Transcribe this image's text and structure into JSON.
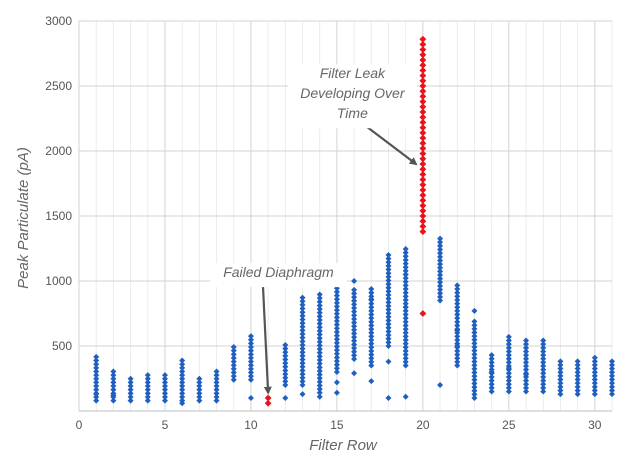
{
  "chart_data": {
    "type": "scatter",
    "title": "",
    "xlabel": "Filter Row",
    "ylabel": "Peak Particulate (pA)",
    "xlim": [
      0,
      31
    ],
    "ylim": [
      0,
      3000
    ],
    "x_ticks": [
      0,
      5,
      10,
      15,
      20,
      25,
      30
    ],
    "y_ticks": [
      500,
      1000,
      1500,
      2000,
      2500,
      3000
    ],
    "grid": true,
    "colors": {
      "normal": "#1f5fbf",
      "anomaly": "#e8141a",
      "arrow": "#555555"
    },
    "series": [
      {
        "ranges": [
          [
            1,
            80,
            440
          ],
          [
            2,
            80,
            320
          ],
          [
            3,
            80,
            270
          ],
          [
            4,
            80,
            300
          ],
          [
            5,
            80,
            290
          ],
          [
            6,
            80,
            410
          ],
          [
            7,
            80,
            250
          ],
          [
            8,
            80,
            310
          ],
          [
            9,
            240,
            510
          ],
          [
            10,
            240,
            600
          ],
          [
            12,
            200,
            530
          ],
          [
            13,
            200,
            880
          ],
          [
            14,
            140,
            900
          ],
          [
            15,
            300,
            970
          ],
          [
            16,
            400,
            950
          ],
          [
            17,
            350,
            950
          ],
          [
            18,
            500,
            1210
          ],
          [
            19,
            350,
            1250
          ],
          [
            21,
            850,
            1340
          ],
          [
            22,
            350,
            980
          ],
          [
            23,
            100,
            700
          ],
          [
            24,
            150,
            430
          ],
          [
            25,
            150,
            570
          ],
          [
            26,
            150,
            550
          ],
          [
            27,
            150,
            550
          ],
          [
            28,
            130,
            400
          ],
          [
            29,
            130,
            390
          ],
          [
            30,
            130,
            420
          ],
          [
            31,
            130,
            400
          ]
        ],
        "points": [
          [
            1,
            130
          ],
          [
            2,
            120
          ],
          [
            6,
            60
          ],
          [
            10,
            100
          ],
          [
            12,
            100
          ],
          [
            13,
            130
          ],
          [
            14,
            110
          ],
          [
            15,
            140
          ],
          [
            15,
            220
          ],
          [
            16,
            290
          ],
          [
            16,
            1000
          ],
          [
            17,
            230
          ],
          [
            17,
            860
          ],
          [
            18,
            100
          ],
          [
            18,
            380
          ],
          [
            19,
            110
          ],
          [
            19,
            1050
          ],
          [
            19,
            800
          ],
          [
            21,
            200
          ],
          [
            22,
            500
          ],
          [
            22,
            620
          ],
          [
            23,
            770
          ],
          [
            24,
            300
          ],
          [
            25,
            330
          ],
          [
            26,
            280
          ]
        ]
      },
      {
        "ranges": [
          [
            11,
            60,
            100
          ],
          [
            20,
            1380,
            2860
          ]
        ],
        "points": [
          [
            20,
            750
          ]
        ]
      }
    ],
    "annotations": [
      {
        "text_lines": [
          "Filter Leak",
          "Developing Over",
          "Time"
        ],
        "x": 15.9,
        "y": 2560,
        "arrow_from": [
          16.1,
          2250
        ],
        "arrow_to": [
          19.6,
          1900
        ]
      },
      {
        "text_lines": [
          "Failed Diaphragm"
        ],
        "x": 11.6,
        "y": 1030,
        "arrow_from": [
          10.7,
          960
        ],
        "arrow_to": [
          11,
          140
        ]
      }
    ]
  }
}
